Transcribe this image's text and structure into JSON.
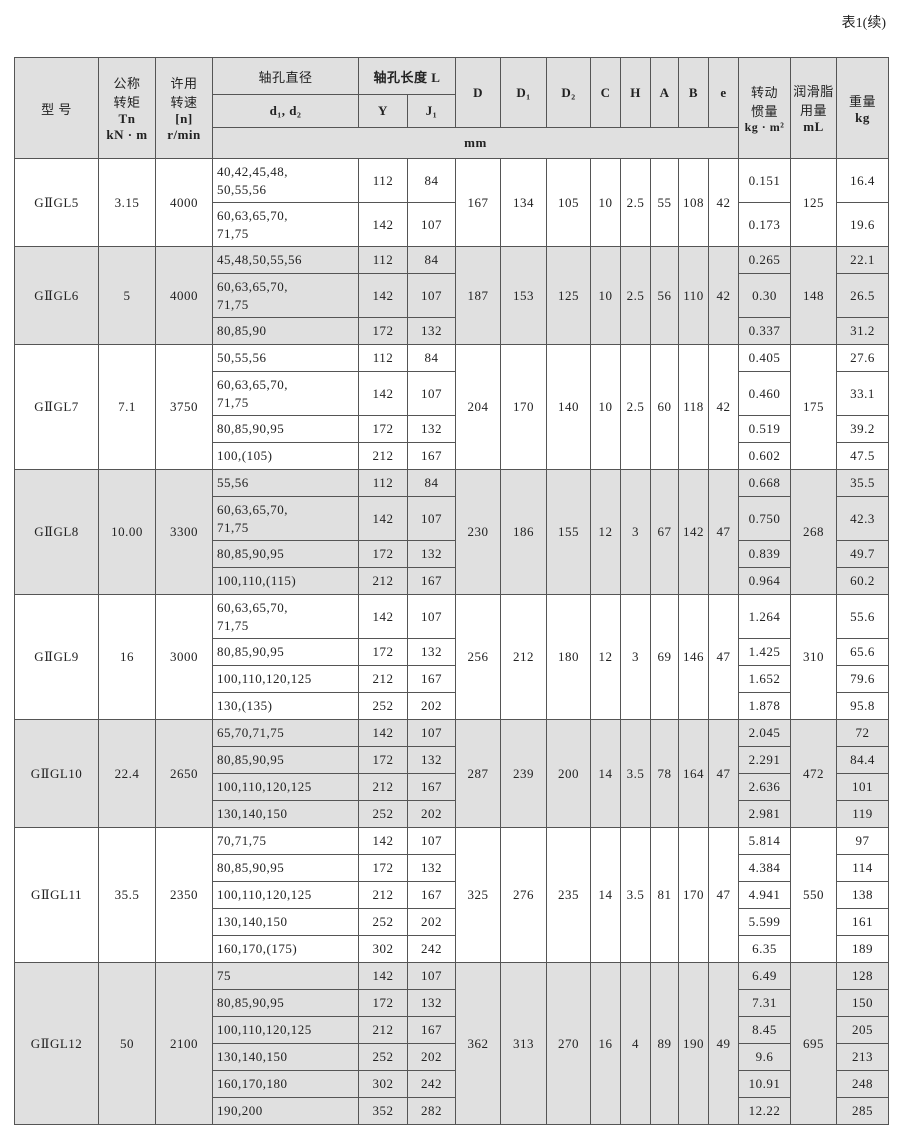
{
  "caption": "表1(续)",
  "header": {
    "model": "型 号",
    "torque": "公称\n转矩",
    "torque_sym": "Tn",
    "torque_unit": "kN · m",
    "speed": "许用\n转速",
    "speed_sym": "[n]",
    "speed_unit": "r/min",
    "bore": "轴孔直径",
    "bore_sub": "d₁, d₂",
    "length": "轴孔长度 L",
    "Y": "Y",
    "J1": "J₁",
    "D": "D",
    "D1": "D₁",
    "D2": "D₂",
    "C": "C",
    "H": "H",
    "A": "A",
    "B": "B",
    "e": "e",
    "mm": "mm",
    "inertia": "转动\n惯量",
    "inertia_unit": "kg · m²",
    "grease": "润滑脂\n用量",
    "grease_unit": "mL",
    "weight": "重量",
    "weight_unit": "kg"
  },
  "groups": [
    {
      "model": "GⅡGL5",
      "Tn": "3.15",
      "n": "4000",
      "D": "167",
      "D1": "134",
      "D2": "105",
      "C": "10",
      "H": "2.5",
      "A": "55",
      "B": "108",
      "e": "42",
      "grease": "125",
      "rows": [
        {
          "d": "40,42,45,48,\n50,55,56",
          "Y": "112",
          "J1": "84",
          "inertia": "0.151",
          "weight": "16.4"
        },
        {
          "d": "60,63,65,70,\n71,75",
          "Y": "142",
          "J1": "107",
          "inertia": "0.173",
          "weight": "19.6"
        }
      ]
    },
    {
      "model": "GⅡGL6",
      "Tn": "5",
      "n": "4000",
      "D": "187",
      "D1": "153",
      "D2": "125",
      "C": "10",
      "H": "2.5",
      "A": "56",
      "B": "110",
      "e": "42",
      "grease": "148",
      "rows": [
        {
          "d": "45,48,50,55,56",
          "Y": "112",
          "J1": "84",
          "inertia": "0.265",
          "weight": "22.1"
        },
        {
          "d": "60,63,65,70,\n71,75",
          "Y": "142",
          "J1": "107",
          "inertia": "0.30",
          "weight": "26.5"
        },
        {
          "d": "80,85,90",
          "Y": "172",
          "J1": "132",
          "inertia": "0.337",
          "weight": "31.2"
        }
      ]
    },
    {
      "model": "GⅡGL7",
      "Tn": "7.1",
      "n": "3750",
      "D": "204",
      "D1": "170",
      "D2": "140",
      "C": "10",
      "H": "2.5",
      "A": "60",
      "B": "118",
      "e": "42",
      "grease": "175",
      "rows": [
        {
          "d": "50,55,56",
          "Y": "112",
          "J1": "84",
          "inertia": "0.405",
          "weight": "27.6"
        },
        {
          "d": "60,63,65,70,\n71,75",
          "Y": "142",
          "J1": "107",
          "inertia": "0.460",
          "weight": "33.1"
        },
        {
          "d": "80,85,90,95",
          "Y": "172",
          "J1": "132",
          "inertia": "0.519",
          "weight": "39.2"
        },
        {
          "d": "100,(105)",
          "Y": "212",
          "J1": "167",
          "inertia": "0.602",
          "weight": "47.5"
        }
      ]
    },
    {
      "model": "GⅡGL8",
      "Tn": "10.00",
      "n": "3300",
      "D": "230",
      "D1": "186",
      "D2": "155",
      "C": "12",
      "H": "3",
      "A": "67",
      "B": "142",
      "e": "47",
      "grease": "268",
      "rows": [
        {
          "d": "55,56",
          "Y": "112",
          "J1": "84",
          "inertia": "0.668",
          "weight": "35.5"
        },
        {
          "d": "60,63,65,70,\n71,75",
          "Y": "142",
          "J1": "107",
          "inertia": "0.750",
          "weight": "42.3"
        },
        {
          "d": "80,85,90,95",
          "Y": "172",
          "J1": "132",
          "inertia": "0.839",
          "weight": "49.7"
        },
        {
          "d": "100,110,(115)",
          "Y": "212",
          "J1": "167",
          "inertia": "0.964",
          "weight": "60.2"
        }
      ]
    },
    {
      "model": "GⅡGL9",
      "Tn": "16",
      "n": "3000",
      "D": "256",
      "D1": "212",
      "D2": "180",
      "C": "12",
      "H": "3",
      "A": "69",
      "B": "146",
      "e": "47",
      "grease": "310",
      "rows": [
        {
          "d": "60,63,65,70,\n71,75",
          "Y": "142",
          "J1": "107",
          "inertia": "1.264",
          "weight": "55.6"
        },
        {
          "d": "80,85,90,95",
          "Y": "172",
          "J1": "132",
          "inertia": "1.425",
          "weight": "65.6"
        },
        {
          "d": "100,110,120,125",
          "Y": "212",
          "J1": "167",
          "inertia": "1.652",
          "weight": "79.6"
        },
        {
          "d": "130,(135)",
          "Y": "252",
          "J1": "202",
          "inertia": "1.878",
          "weight": "95.8"
        }
      ]
    },
    {
      "model": "GⅡGL10",
      "Tn": "22.4",
      "n": "2650",
      "D": "287",
      "D1": "239",
      "D2": "200",
      "C": "14",
      "H": "3.5",
      "A": "78",
      "B": "164",
      "e": "47",
      "grease": "472",
      "rows": [
        {
          "d": "65,70,71,75",
          "Y": "142",
          "J1": "107",
          "inertia": "2.045",
          "weight": "72"
        },
        {
          "d": "80,85,90,95",
          "Y": "172",
          "J1": "132",
          "inertia": "2.291",
          "weight": "84.4"
        },
        {
          "d": "100,110,120,125",
          "Y": "212",
          "J1": "167",
          "inertia": "2.636",
          "weight": "101"
        },
        {
          "d": "130,140,150",
          "Y": "252",
          "J1": "202",
          "inertia": "2.981",
          "weight": "119"
        }
      ]
    },
    {
      "model": "GⅡGL11",
      "Tn": "35.5",
      "n": "2350",
      "D": "325",
      "D1": "276",
      "D2": "235",
      "C": "14",
      "H": "3.5",
      "A": "81",
      "B": "170",
      "e": "47",
      "grease": "550",
      "rows": [
        {
          "d": "70,71,75",
          "Y": "142",
          "J1": "107",
          "inertia": "5.814",
          "weight": "97"
        },
        {
          "d": "80,85,90,95",
          "Y": "172",
          "J1": "132",
          "inertia": "4.384",
          "weight": "114"
        },
        {
          "d": "100,110,120,125",
          "Y": "212",
          "J1": "167",
          "inertia": "4.941",
          "weight": "138"
        },
        {
          "d": "130,140,150",
          "Y": "252",
          "J1": "202",
          "inertia": "5.599",
          "weight": "161"
        },
        {
          "d": "160,170,(175)",
          "Y": "302",
          "J1": "242",
          "inertia": "6.35",
          "weight": "189"
        }
      ]
    },
    {
      "model": "GⅡGL12",
      "Tn": "50",
      "n": "2100",
      "D": "362",
      "D1": "313",
      "D2": "270",
      "C": "16",
      "H": "4",
      "A": "89",
      "B": "190",
      "e": "49",
      "grease": "695",
      "rows": [
        {
          "d": "75",
          "Y": "142",
          "J1": "107",
          "inertia": "6.49",
          "weight": "128"
        },
        {
          "d": "80,85,90,95",
          "Y": "172",
          "J1": "132",
          "inertia": "7.31",
          "weight": "150"
        },
        {
          "d": "100,110,120,125",
          "Y": "212",
          "J1": "167",
          "inertia": "8.45",
          "weight": "205"
        },
        {
          "d": "130,140,150",
          "Y": "252",
          "J1": "202",
          "inertia": "9.6",
          "weight": "213"
        },
        {
          "d": "160,170,180",
          "Y": "302",
          "J1": "242",
          "inertia": "10.91",
          "weight": "248"
        },
        {
          "d": "190,200",
          "Y": "352",
          "J1": "282",
          "inertia": "12.22",
          "weight": "285"
        }
      ]
    }
  ]
}
